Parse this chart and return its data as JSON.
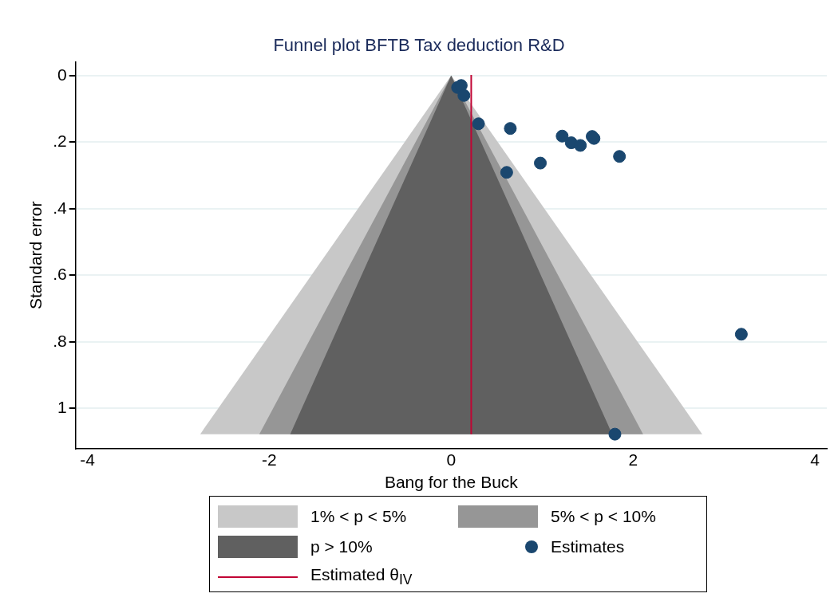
{
  "chart_data": {
    "type": "scatter",
    "title": "Funnel plot BFTB Tax deduction R&D",
    "xlabel": "Bang for the Buck",
    "ylabel": "Standard error",
    "xlim": [
      -4.13,
      4.13
    ],
    "xticks": [
      -4,
      -2,
      0,
      2,
      4
    ],
    "ylim": [
      1.12,
      -0.04
    ],
    "yticks": [
      {
        "value": 0,
        "label": "0"
      },
      {
        "value": 0.2,
        "label": ".2"
      },
      {
        "value": 0.4,
        "label": ".4"
      },
      {
        "value": 0.6,
        "label": ".6"
      },
      {
        "value": 0.8,
        "label": ".8"
      },
      {
        "value": 1,
        "label": "1"
      }
    ],
    "grid": "y",
    "legend": "bottom",
    "series": [
      {
        "name": "1% < p < 5%",
        "type": "area",
        "color": "#c8c8c8",
        "x": [
          -2.76,
          0,
          2.76
        ],
        "values": [
          1.077,
          0,
          1.077
        ]
      },
      {
        "name": "5% < p < 10%",
        "type": "area",
        "color": "#969696",
        "x": [
          -2.11,
          0,
          2.11
        ],
        "values": [
          1.077,
          0,
          1.077
        ]
      },
      {
        "name": "p > 10%",
        "type": "area",
        "color": "#606060",
        "x": [
          -1.77,
          0,
          1.77
        ],
        "values": [
          1.077,
          0,
          1.077
        ]
      },
      {
        "name": "Estimates",
        "type": "scatter",
        "marker": "circle",
        "color": "#1a476f",
        "x": [
          0.07,
          0.11,
          0.14,
          0.3,
          0.65,
          1.22,
          1.32,
          1.42,
          1.55,
          1.57,
          1.85,
          0.98,
          0.61,
          3.19,
          1.8
        ],
        "values": [
          0.036,
          0.03,
          0.06,
          0.145,
          0.159,
          0.182,
          0.202,
          0.21,
          0.183,
          0.189,
          0.243,
          0.263,
          0.291,
          0.777,
          1.077
        ]
      }
    ],
    "ref_lines": [
      {
        "axis": "x",
        "value": 0.22,
        "label": "Estimated θ$_{IV}$",
        "color": "#c10534"
      }
    ]
  }
}
